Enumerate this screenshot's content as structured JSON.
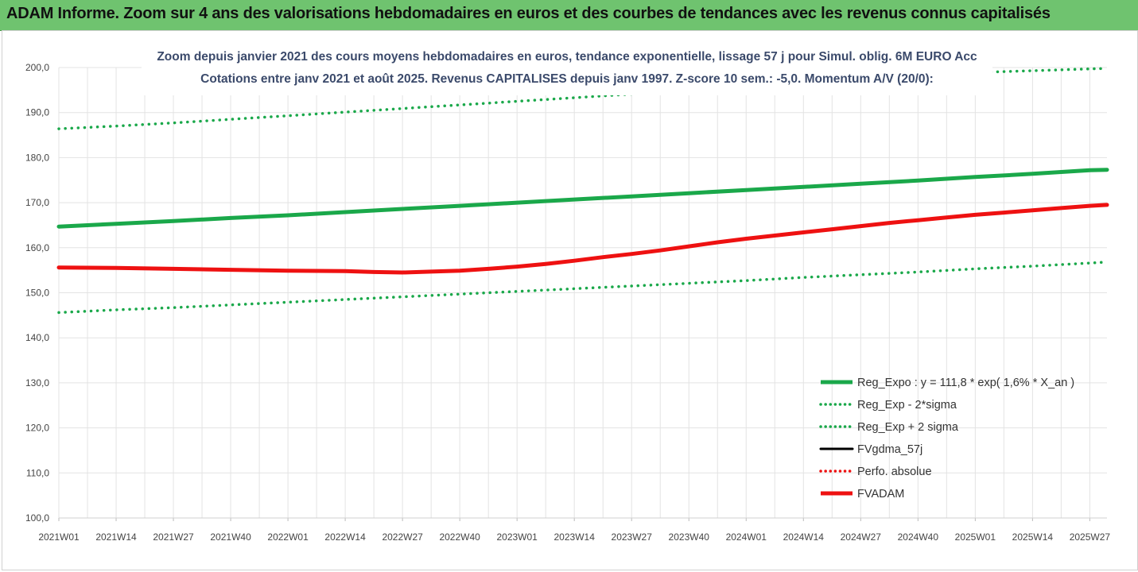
{
  "header": {
    "title": "ADAM Informe. Zoom sur 4 ans des valorisations hebdomadaires en euros et des courbes de tendances avec les revenus connus capitalisés"
  },
  "colors": {
    "header_bg": "#6fc36f",
    "green": "#1aa84a",
    "red": "#ee1111",
    "black": "#000000",
    "grid": "#e3e3e3"
  },
  "chart_data": {
    "type": "line",
    "title_lines": [
      "Zoom depuis janvier 2021 des cours moyens hebdomadaires en euros, tendance exponentielle, lissage 57 j pour Simul. oblig. 6M EURO Acc",
      "Cotations entre janv 2021 et août 2025.  Revenus CAPITALISES depuis janv 1997. Z-score 10 sem.: -5,0. Momentum A/V (20/0):"
    ],
    "x_tick_labels": [
      "2021W01",
      "2021W14",
      "2021W27",
      "2021W40",
      "2022W01",
      "2022W14",
      "2022W27",
      "2022W40",
      "2023W01",
      "2023W14",
      "2023W27",
      "2023W40",
      "2024W01",
      "2024W14",
      "2024W27",
      "2024W40",
      "2025W01",
      "2025W14",
      "2025W27"
    ],
    "y_tick_labels": [
      "100,0",
      "110,0",
      "120,0",
      "130,0",
      "140,0",
      "150,0",
      "160,0",
      "170,0",
      "180,0",
      "190,0",
      "200,0"
    ],
    "ylim": [
      100,
      200
    ],
    "grid": true,
    "legend_position": "bottom-right",
    "x_index_max": 18.3,
    "series": [
      {
        "name": "Reg_Expo : y = 111,8 * exp( 1,6% *  X_an )",
        "style": "solid-thick",
        "color": "#1aa84a",
        "x": [
          0,
          1,
          2,
          3,
          4,
          5,
          6,
          7,
          8,
          9,
          10,
          11,
          12,
          13,
          14,
          15,
          16,
          17,
          18,
          18.3
        ],
        "values": [
          164.7,
          165.3,
          165.9,
          166.6,
          167.2,
          167.9,
          168.6,
          169.3,
          170.0,
          170.7,
          171.4,
          172.1,
          172.8,
          173.5,
          174.2,
          174.9,
          175.7,
          176.4,
          177.2,
          177.3
        ]
      },
      {
        "name": "Reg_Exp - 2*sigma",
        "style": "dotted",
        "color": "#1aa84a",
        "x": [
          0,
          1,
          2,
          3,
          4,
          5,
          6,
          7,
          8,
          9,
          10,
          11,
          12,
          13,
          14,
          15,
          16,
          17,
          18,
          18.3
        ],
        "values": [
          145.6,
          146.2,
          146.7,
          147.3,
          147.9,
          148.5,
          149.1,
          149.7,
          150.3,
          150.9,
          151.5,
          152.1,
          152.7,
          153.4,
          154.0,
          154.6,
          155.3,
          155.9,
          156.6,
          156.8
        ]
      },
      {
        "name": "Reg_Exp + 2 sigma",
        "style": "dotted",
        "color": "#1aa84a",
        "x": [
          0,
          1,
          2,
          3,
          4,
          5,
          6,
          7,
          8,
          9,
          10,
          11,
          12,
          13,
          14,
          15,
          16,
          17,
          18,
          18.3
        ],
        "values": [
          186.4,
          187.0,
          187.7,
          188.5,
          189.3,
          190.1,
          190.9,
          191.7,
          192.5,
          193.3,
          194.1,
          194.9,
          195.7,
          196.5,
          197.3,
          198.1,
          198.9,
          199.3,
          199.7,
          199.8
        ]
      },
      {
        "name": "FVgdma_57j",
        "style": "solid",
        "color": "#000000",
        "x": [],
        "values": []
      },
      {
        "name": "Perfo. absolue",
        "style": "dotted",
        "color": "#ee1111",
        "x": [],
        "values": []
      },
      {
        "name": "FVADAM",
        "style": "solid-thick",
        "color": "#ee1111",
        "x": [
          0,
          1,
          2,
          3,
          4,
          5,
          5.5,
          6,
          6.5,
          7,
          7.5,
          8,
          8.5,
          9,
          9.5,
          10,
          10.5,
          11,
          11.5,
          12,
          12.5,
          13,
          13.5,
          14,
          14.5,
          15,
          15.5,
          16,
          16.5,
          17,
          17.5,
          18,
          18.3
        ],
        "values": [
          155.6,
          155.5,
          155.3,
          155.1,
          154.9,
          154.8,
          154.6,
          154.5,
          154.7,
          154.9,
          155.3,
          155.8,
          156.4,
          157.1,
          157.9,
          158.6,
          159.4,
          160.3,
          161.2,
          162.0,
          162.7,
          163.4,
          164.1,
          164.8,
          165.5,
          166.1,
          166.7,
          167.3,
          167.8,
          168.3,
          168.8,
          169.3,
          169.5
        ]
      }
    ]
  }
}
